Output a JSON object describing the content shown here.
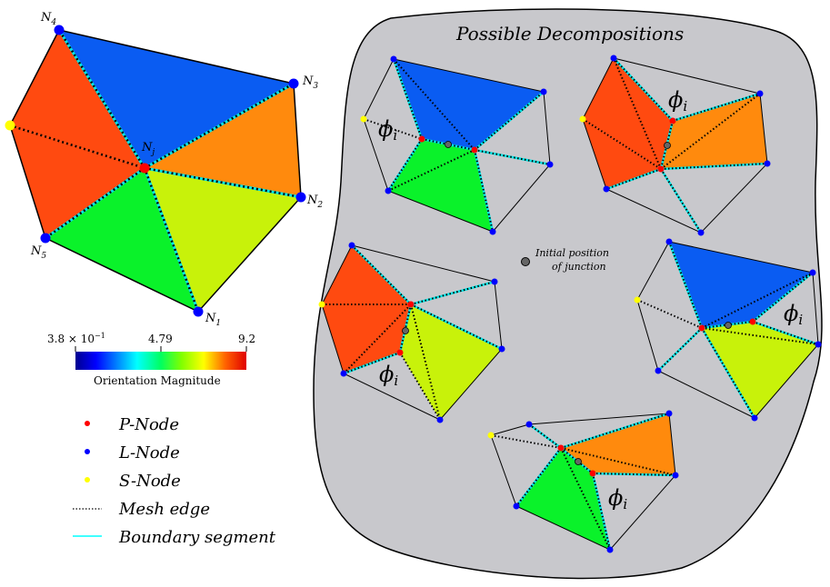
{
  "main_mesh": {
    "nodes": {
      "n1": "N",
      "n1_sub": "1",
      "n2": "N",
      "n2_sub": "2",
      "n3": "N",
      "n3_sub": "3",
      "n4": "N",
      "n4_sub": "4",
      "n5": "N",
      "n5_sub": "5",
      "nj": "N",
      "nj_sub": "j"
    }
  },
  "colorbar": {
    "min_label": "3.8 × 10",
    "min_exp": "−1",
    "mid_label": "4.79",
    "max_label": "9.2",
    "caption": "Orientation Magnitude"
  },
  "legend": {
    "items": [
      {
        "label": "P-Node",
        "color": "#ff0000"
      },
      {
        "label": "L-Node",
        "color": "#0000ff"
      },
      {
        "label": "S-Node",
        "color": "#ffff00"
      },
      {
        "label": "Mesh edge",
        "color": "#000000"
      },
      {
        "label": "Boundary segment",
        "color": "#00ffff"
      }
    ]
  },
  "blob": {
    "title": "Possible Decompositions",
    "junction_label_line1": "Initial position",
    "junction_label_line2": "of junction",
    "phi": "ϕ",
    "phi_sub": "i"
  },
  "colors": {
    "blue": "#0a5cf2",
    "orange": "#ff8a0d",
    "red_orange": "#ff4a10",
    "yellow_green": "#c8f20a",
    "green": "#0af22a",
    "blob_fill": "#c8c8cc",
    "cyan": "#00e5e5",
    "node_blue": "#0000ff",
    "node_red": "#ff0000",
    "node_yellow": "#ffff00"
  }
}
